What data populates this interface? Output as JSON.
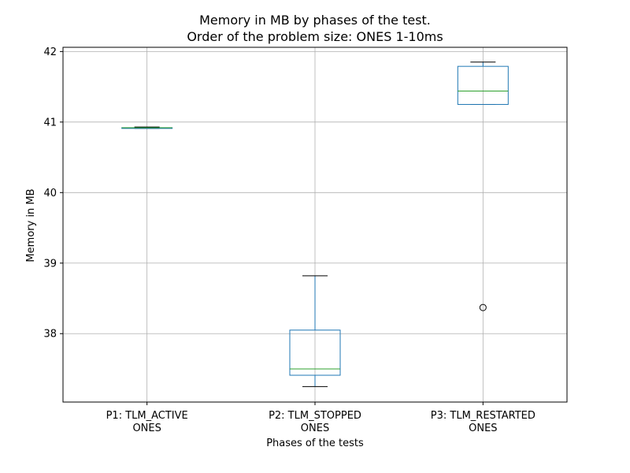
{
  "chart_data": {
    "type": "box",
    "title_lines": [
      "Memory in MB by phases of the test.",
      "Order of the problem size: ONES 1-10ms"
    ],
    "xlabel": "Phases of the tests",
    "ylabel": "Memory in MB",
    "ylim": [
      37.03,
      42.06
    ],
    "yticks": [
      38,
      39,
      40,
      41,
      42
    ],
    "grid": true,
    "categories": [
      {
        "label_lines": [
          "P1: TLM_ACTIVE",
          "ONES"
        ]
      },
      {
        "label_lines": [
          "P2: TLM_STOPPED",
          "ONES"
        ]
      },
      {
        "label_lines": [
          "P3: TLM_RESTARTED",
          "ONES"
        ]
      }
    ],
    "boxes": [
      {
        "whisker_low": 40.91,
        "q1": 40.91,
        "median": 40.92,
        "q3": 40.92,
        "whisker_high": 40.93,
        "outliers": []
      },
      {
        "whisker_low": 37.25,
        "q1": 37.41,
        "median": 37.5,
        "q3": 38.05,
        "whisker_high": 38.82,
        "outliers": []
      },
      {
        "whisker_low": 41.25,
        "q1": 41.25,
        "median": 41.44,
        "q3": 41.79,
        "whisker_high": 41.85,
        "outliers": [
          38.37
        ]
      }
    ],
    "colors": {
      "box": "#1f77b4",
      "median": "#2ca02c",
      "whisker": "#1f77b4",
      "cap": "#000000",
      "grid": "#b0b0b0",
      "axes": "#000000"
    }
  }
}
